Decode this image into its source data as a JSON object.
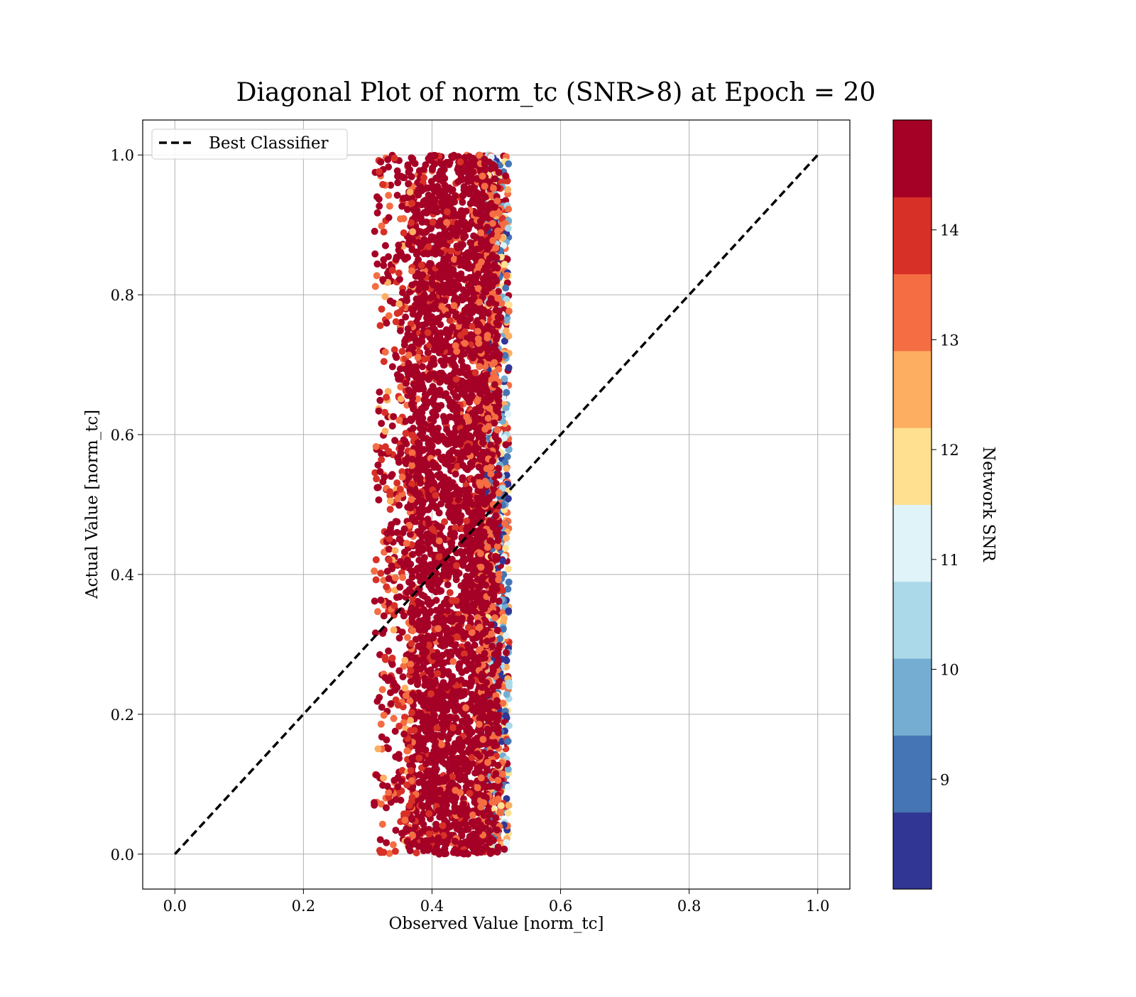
{
  "chart_data": {
    "type": "scatter",
    "title": "Diagonal Plot of norm_tc (SNR>8) at Epoch = 20",
    "xlabel": "Observed Value [norm_tc]",
    "ylabel": "Actual Value [norm_tc]",
    "xlim": [
      -0.05,
      1.05
    ],
    "ylim": [
      -0.05,
      1.05
    ],
    "xticks": [
      "0.0",
      "0.2",
      "0.4",
      "0.6",
      "0.8",
      "1.0"
    ],
    "yticks": [
      "0.0",
      "0.2",
      "0.4",
      "0.6",
      "0.8",
      "1.0"
    ],
    "grid": true,
    "legend": {
      "placement": "top-left",
      "entries": [
        {
          "label": "Best Classifier",
          "style": "dashed",
          "color": "#000000"
        }
      ]
    },
    "reference_line": {
      "name": "Best Classifier",
      "x": [
        0.0,
        1.0
      ],
      "y": [
        0.0,
        1.0
      ]
    },
    "scatter_summary": {
      "x_range": [
        0.31,
        0.52
      ],
      "y_range": [
        0.0,
        1.0
      ],
      "dense_core_x_range": [
        0.37,
        0.49
      ],
      "dominant_snr": 14.5
    },
    "colorbar": {
      "label": "Network SNR",
      "range": [
        8,
        15
      ],
      "ticks": [
        "9",
        "10",
        "11",
        "12",
        "13",
        "14"
      ],
      "bins": [
        {
          "from": 8.0,
          "to": 8.7,
          "color": "#313695"
        },
        {
          "from": 8.7,
          "to": 9.4,
          "color": "#4575b4"
        },
        {
          "from": 9.4,
          "to": 10.1,
          "color": "#74add1"
        },
        {
          "from": 10.1,
          "to": 10.8,
          "color": "#abd9e9"
        },
        {
          "from": 10.8,
          "to": 11.5,
          "color": "#e0f3f8"
        },
        {
          "from": 11.5,
          "to": 12.2,
          "color": "#fee090"
        },
        {
          "from": 12.2,
          "to": 12.9,
          "color": "#fdae61"
        },
        {
          "from": 12.9,
          "to": 13.6,
          "color": "#f46d43"
        },
        {
          "from": 13.6,
          "to": 14.3,
          "color": "#d73027"
        },
        {
          "from": 14.3,
          "to": 15.0,
          "color": "#a50026"
        }
      ]
    }
  }
}
